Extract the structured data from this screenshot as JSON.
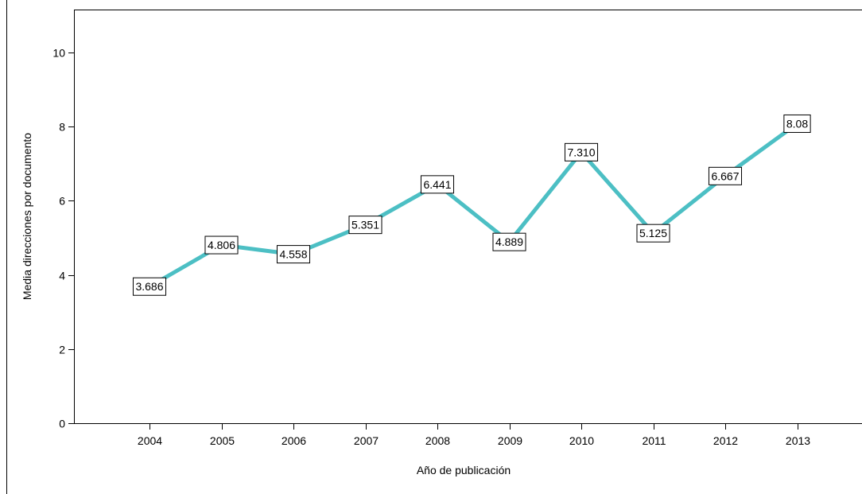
{
  "chart_data": {
    "type": "line",
    "title": "",
    "xlabel": "Año de publicación",
    "ylabel": "Media direcciones por documento",
    "categories": [
      "2004",
      "2005",
      "2006",
      "2007",
      "2008",
      "2009",
      "2010",
      "2011",
      "2012",
      "2013"
    ],
    "values": [
      3.686,
      4.806,
      4.558,
      5.351,
      6.441,
      4.889,
      7.31,
      5.125,
      6.667,
      8.08
    ],
    "data_labels": [
      "3.686",
      "4.806",
      "4.558",
      "5.351",
      "6.441",
      "4.889",
      "7.310",
      "5.125",
      "6.667",
      "8.08"
    ],
    "yticks": [
      "0",
      "2",
      "4",
      "6",
      "8",
      "10"
    ],
    "ytick_values": [
      0,
      2,
      4,
      6,
      8,
      10
    ],
    "ylim": [
      0,
      11
    ],
    "grid": false,
    "legend": "none",
    "line_color": "#4cbfc4"
  }
}
